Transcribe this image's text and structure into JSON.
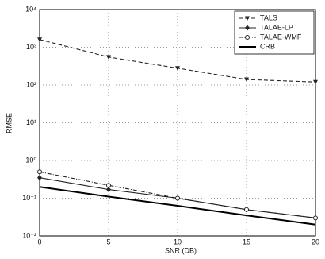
{
  "chart_data": {
    "type": "line",
    "xlabel": "SNR (DB)",
    "ylabel": "RMSE",
    "x": [
      0,
      5,
      10,
      15,
      20
    ],
    "series": [
      {
        "name": "TALS",
        "color": "#222222",
        "style": "dashed",
        "marker": "triangle-down",
        "values": [
          1600,
          550,
          280,
          140,
          120
        ]
      },
      {
        "name": "TALAE-LP",
        "color": "#222222",
        "style": "solid",
        "marker": "diamond",
        "values": [
          0.35,
          0.17,
          0.1,
          0.05,
          0.03
        ]
      },
      {
        "name": "TALAE-WMF",
        "color": "#222222",
        "style": "dashdot",
        "marker": "circle",
        "values": [
          0.5,
          0.22,
          0.1,
          0.05,
          0.03
        ]
      },
      {
        "name": "CRB",
        "color": "#000000",
        "style": "bold",
        "marker": "none",
        "values": [
          0.2,
          0.11,
          0.063,
          0.035,
          0.02
        ]
      }
    ],
    "xlim": [
      0,
      20
    ],
    "xticks": [
      0,
      5,
      10,
      15,
      20
    ],
    "ylim": [
      0.01,
      10000
    ],
    "ylog": true,
    "yticks": [
      {
        "value": 0.01,
        "label": "10⁻²"
      },
      {
        "value": 0.1,
        "label": "10⁻¹"
      },
      {
        "value": 1,
        "label": "10⁰"
      },
      {
        "value": 10,
        "label": "10¹"
      },
      {
        "value": 100,
        "label": "10²"
      },
      {
        "value": 1000,
        "label": "10³"
      },
      {
        "value": 10000,
        "label": "10⁴"
      }
    ],
    "grid": true,
    "legend": "upper right"
  }
}
